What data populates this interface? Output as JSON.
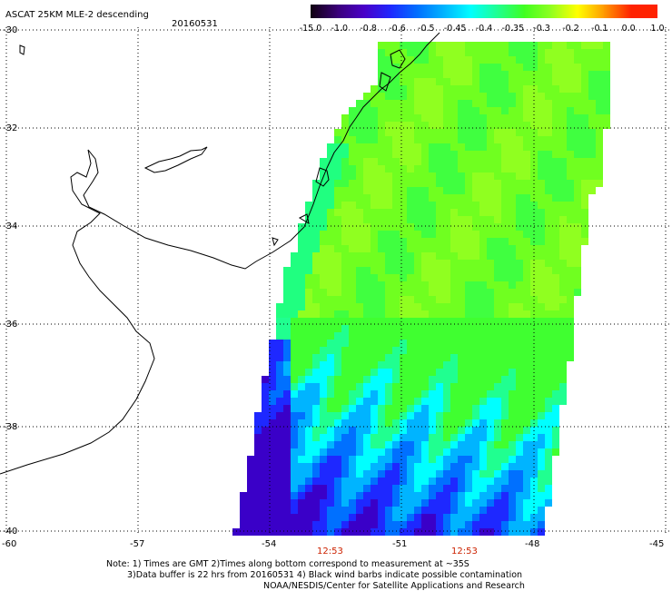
{
  "header": {
    "title": "ASCAT 25KM MLE-2 descending",
    "date": "20160531"
  },
  "colorbar": {
    "labels": [
      "-15.0",
      "-1.0",
      "-0.8",
      "-0.6",
      "-0.5",
      "-0.45",
      "-0.4",
      "-0.35",
      "-0.3",
      "-0.2",
      "-0.1",
      "0.0",
      "1.0"
    ],
    "colors": [
      "#100010",
      "#3a0078",
      "#4a00c8",
      "#1e28ff",
      "#0070ff",
      "#00b4ff",
      "#00ffff",
      "#20ff90",
      "#40ff20",
      "#90ff20",
      "#ffff00",
      "#ff9900",
      "#ff2200"
    ]
  },
  "axes": {
    "lat_labels": [
      "-30",
      "-32",
      "-34",
      "-36",
      "-38",
      "-40"
    ],
    "lon_labels": [
      "-60",
      "-57",
      "-54",
      "-51",
      "-48",
      "-45"
    ]
  },
  "times": [
    "12:53",
    "12:53"
  ],
  "notes": [
    "Note: 1) Times are GMT 2)Times along bottom correspond to measurement at ~35S",
    "3)Data buffer is 22 hrs from 20160531 4) Black wind barbs indicate possible contamination",
    "NOAA/NESDIS/Center for Satellite Applications and Research"
  ]
}
